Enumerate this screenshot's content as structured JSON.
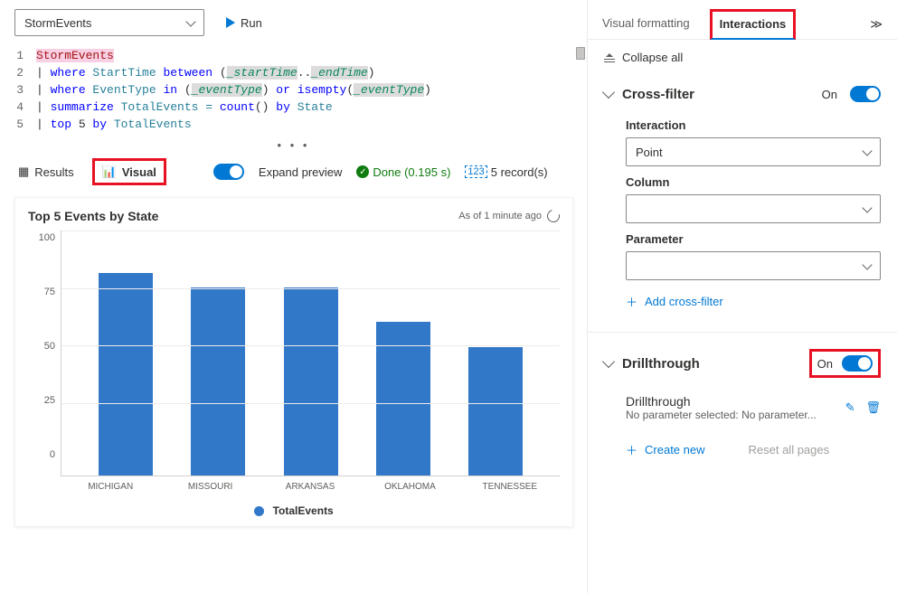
{
  "toolbar": {
    "database": "StormEvents",
    "run_label": "Run"
  },
  "editor": {
    "lines": [
      {
        "n": 1,
        "tokens": [
          {
            "t": "StormEvents",
            "c": "tok-table"
          }
        ]
      },
      {
        "n": 2,
        "tokens": [
          {
            "t": "| ",
            "c": "tok-plain"
          },
          {
            "t": "where",
            "c": "tok-op"
          },
          {
            "t": " StartTime ",
            "c": "tok-col"
          },
          {
            "t": "between",
            "c": "tok-op"
          },
          {
            "t": " (",
            "c": "tok-plain"
          },
          {
            "t": "_startTime",
            "c": "tok-param hl-bg"
          },
          {
            "t": "..",
            "c": "tok-plain"
          },
          {
            "t": "_endTime",
            "c": "tok-param hl-bg"
          },
          {
            "t": ")",
            "c": "tok-plain"
          }
        ]
      },
      {
        "n": 3,
        "tokens": [
          {
            "t": "| ",
            "c": "tok-plain"
          },
          {
            "t": "where",
            "c": "tok-op"
          },
          {
            "t": " EventType ",
            "c": "tok-col"
          },
          {
            "t": "in",
            "c": "tok-op"
          },
          {
            "t": " (",
            "c": "tok-plain"
          },
          {
            "t": "_eventType",
            "c": "tok-param hl-bg"
          },
          {
            "t": ") ",
            "c": "tok-plain"
          },
          {
            "t": "or",
            "c": "tok-op"
          },
          {
            "t": " ",
            "c": "tok-plain"
          },
          {
            "t": "isempty",
            "c": "tok-fn"
          },
          {
            "t": "(",
            "c": "tok-plain"
          },
          {
            "t": "_eventType",
            "c": "tok-param hl-bg"
          },
          {
            "t": ")",
            "c": "tok-plain"
          }
        ]
      },
      {
        "n": 4,
        "tokens": [
          {
            "t": "| ",
            "c": "tok-plain"
          },
          {
            "t": "summarize",
            "c": "tok-op"
          },
          {
            "t": " TotalEvents = ",
            "c": "tok-col"
          },
          {
            "t": "count",
            "c": "tok-fn"
          },
          {
            "t": "() ",
            "c": "tok-plain"
          },
          {
            "t": "by",
            "c": "tok-op"
          },
          {
            "t": " State",
            "c": "tok-col"
          }
        ]
      },
      {
        "n": 5,
        "tokens": [
          {
            "t": "| ",
            "c": "tok-plain"
          },
          {
            "t": "top",
            "c": "tok-op"
          },
          {
            "t": " 5 ",
            "c": "tok-plain"
          },
          {
            "t": "by",
            "c": "tok-op"
          },
          {
            "t": " TotalEvents",
            "c": "tok-col"
          }
        ]
      }
    ]
  },
  "results_bar": {
    "results_tab": "Results",
    "visual_tab": "Visual",
    "expand_label": "Expand preview",
    "status_label": "Done (0.195 s)",
    "records_label": "5 record(s)",
    "records_badge": "123"
  },
  "chart": {
    "title": "Top 5 Events by State",
    "timestamp": "As of 1 minute ago",
    "type": "bar",
    "ylim": [
      0,
      100
    ],
    "yticks": [
      100,
      75,
      50,
      25,
      0
    ],
    "categories": [
      "MICHIGAN",
      "MISSOURI",
      "ARKANSAS",
      "OKLAHOMA",
      "TENNESSEE"
    ],
    "values": [
      88,
      82,
      82,
      67,
      56
    ],
    "bar_color": "#3278c8",
    "legend_label": "TotalEvents"
  },
  "right": {
    "tab_visual": "Visual formatting",
    "tab_interactions": "Interactions",
    "collapse_all": "Collapse all",
    "cross_filter": {
      "title": "Cross-filter",
      "on": "On",
      "interaction_label": "Interaction",
      "interaction_value": "Point",
      "column_label": "Column",
      "column_value": "",
      "parameter_label": "Parameter",
      "parameter_value": "",
      "add_label": "Add cross-filter"
    },
    "drillthrough": {
      "title": "Drillthrough",
      "on": "On",
      "item_title": "Drillthrough",
      "item_sub": "No parameter selected: No parameter...",
      "create_label": "Create new",
      "reset_label": "Reset all pages"
    }
  }
}
